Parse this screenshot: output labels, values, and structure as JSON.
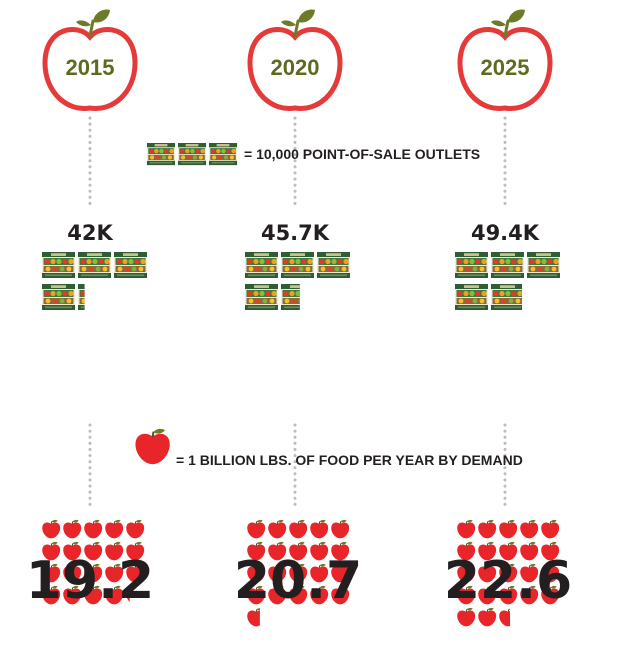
{
  "chart_data": {
    "type": "pictograph",
    "years": [
      "2015",
      "2020",
      "2025"
    ],
    "outlets": {
      "legend": "= 10,000 POINT-OF-SALE OUTLETS",
      "unit_value": 10000,
      "labels": [
        "42K",
        "45.7K",
        "49.4K"
      ],
      "values": [
        42000,
        45700,
        49400
      ]
    },
    "food_demand": {
      "legend": "= 1 BILLION LBS. OF FOOD PER YEAR BY DEMAND",
      "unit_value": 1,
      "labels": [
        "19.2",
        "20.7",
        "22.6"
      ],
      "values": [
        19.2,
        20.7,
        22.6
      ]
    }
  },
  "colors": {
    "apple_red": "#e8262a",
    "apple_outline": "#e53a3a",
    "leaf_green": "#6d7a27",
    "year_text": "#5c6b1f",
    "crate_green": "#2f5d34",
    "dots": "#bdbdbd",
    "text_dark": "#231f20"
  },
  "icons": {
    "year_marker": "apple-outline-icon",
    "outlet_unit": "produce-crate-icon",
    "demand_unit": "apple-icon"
  }
}
